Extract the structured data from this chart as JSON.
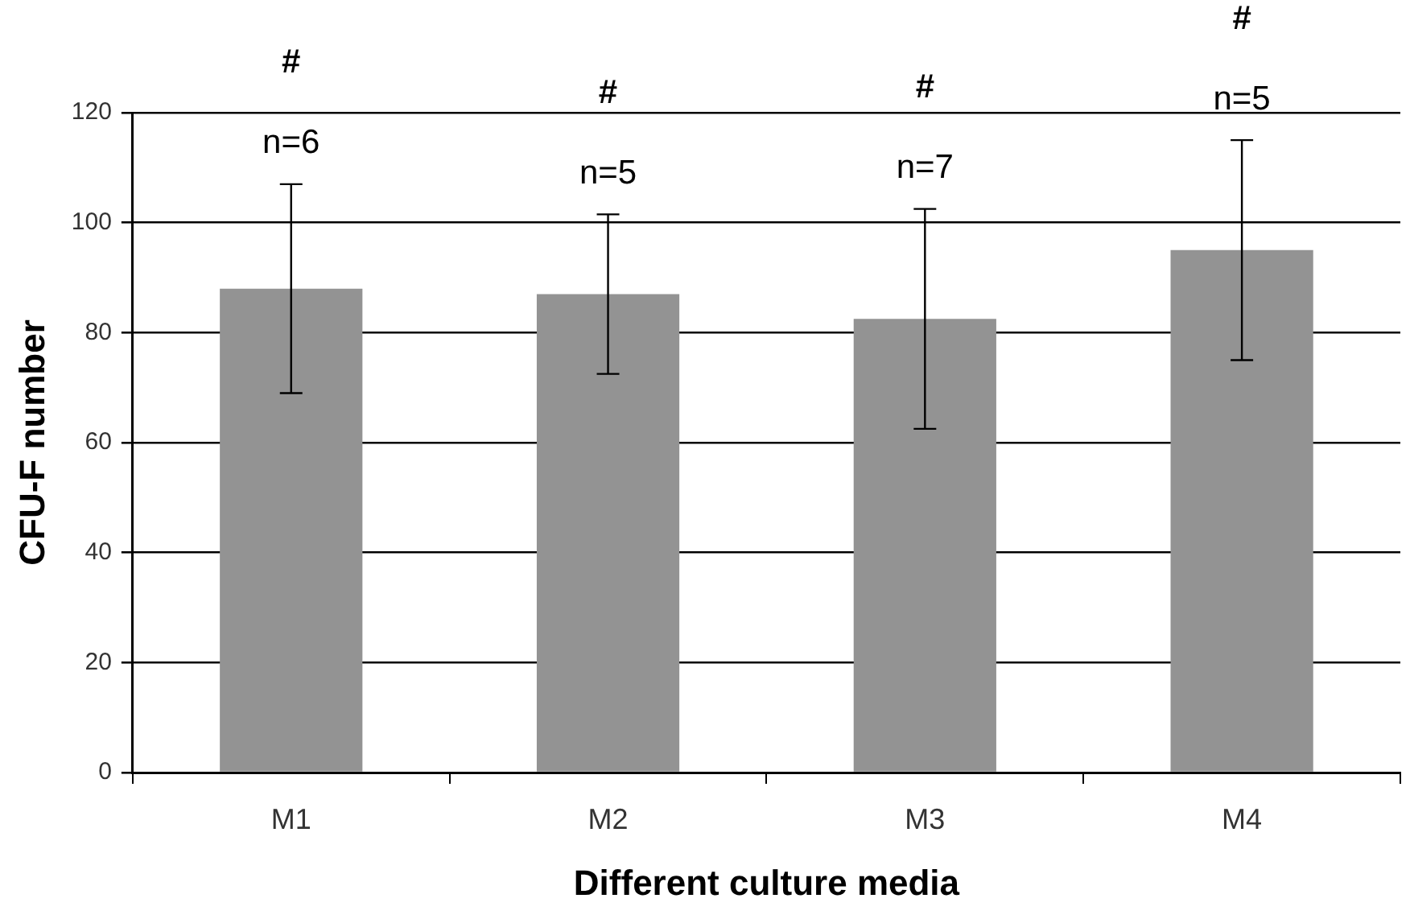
{
  "chart_data": {
    "type": "bar",
    "categories": [
      "M1",
      "M2",
      "M3",
      "M4"
    ],
    "values": [
      88,
      87,
      82.5,
      95
    ],
    "errors": [
      19,
      14.5,
      20,
      20
    ],
    "color": "#939393",
    "xlabel": "Different culture media",
    "ylabel": "CFU-F number",
    "ylim": [
      0,
      120
    ],
    "yticks": [
      0,
      20,
      40,
      60,
      80,
      100,
      120
    ],
    "grid": "y",
    "annotations": [
      "n=6",
      "#",
      "n=5",
      "#",
      "n=7",
      "#",
      "n=5",
      "#"
    ]
  }
}
